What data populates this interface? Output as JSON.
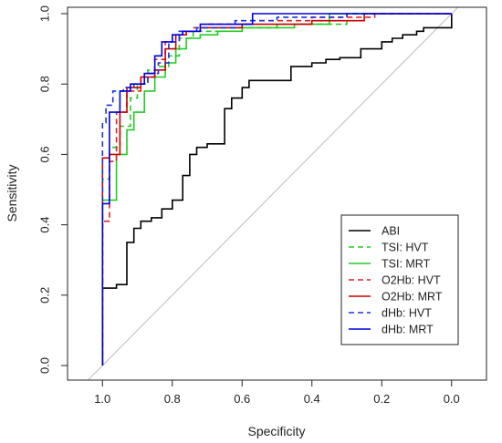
{
  "chart_data": {
    "type": "line",
    "title": "",
    "xlabel": "Specificity",
    "ylabel": "Sensitivity",
    "xlim": [
      1.1,
      -0.1
    ],
    "ylim": [
      0.0,
      1.0
    ],
    "x_reversed": true,
    "x_ticks": [
      1.0,
      0.8,
      0.6,
      0.4,
      0.2,
      0.0
    ],
    "x_tick_labels": [
      "1.0",
      "0.8",
      "0.6",
      "0.4",
      "0.2",
      "0.0"
    ],
    "y_ticks": [
      0.0,
      0.2,
      0.4,
      0.6,
      0.8,
      1.0
    ],
    "y_tick_labels": [
      "0.0",
      "0.2",
      "0.4",
      "0.6",
      "0.8",
      "1.0"
    ],
    "grid": false,
    "legend_position": "bottom-right",
    "reference_line": {
      "color": "#bbbbbb",
      "from": [
        1.0,
        0.0
      ],
      "to": [
        0.0,
        1.0
      ]
    },
    "series": [
      {
        "name": "ABI",
        "color": "#000000",
        "dash": "solid",
        "x": [
          1.0,
          1.0,
          0.96,
          0.96,
          0.93,
          0.93,
          0.91,
          0.91,
          0.89,
          0.89,
          0.86,
          0.86,
          0.83,
          0.83,
          0.8,
          0.8,
          0.77,
          0.77,
          0.75,
          0.75,
          0.73,
          0.73,
          0.7,
          0.7,
          0.65,
          0.65,
          0.63,
          0.63,
          0.6,
          0.6,
          0.58,
          0.58,
          0.53,
          0.53,
          0.46,
          0.46,
          0.4,
          0.4,
          0.36,
          0.36,
          0.32,
          0.32,
          0.26,
          0.26,
          0.2,
          0.2,
          0.17,
          0.17,
          0.14,
          0.14,
          0.1,
          0.1,
          0.08,
          0.08,
          0.0,
          0.0
        ],
        "y": [
          0.0,
          0.22,
          0.22,
          0.23,
          0.23,
          0.35,
          0.35,
          0.39,
          0.39,
          0.41,
          0.41,
          0.42,
          0.42,
          0.445,
          0.445,
          0.47,
          0.47,
          0.54,
          0.54,
          0.6,
          0.6,
          0.62,
          0.62,
          0.63,
          0.63,
          0.73,
          0.73,
          0.76,
          0.76,
          0.79,
          0.79,
          0.81,
          0.81,
          0.81,
          0.81,
          0.85,
          0.85,
          0.86,
          0.86,
          0.87,
          0.87,
          0.875,
          0.875,
          0.9,
          0.9,
          0.92,
          0.92,
          0.93,
          0.93,
          0.94,
          0.94,
          0.95,
          0.95,
          0.96,
          0.96,
          1.0
        ]
      },
      {
        "name": "TSI: HVT",
        "color": "#22cc22",
        "dash": "dashed",
        "x": [
          1.0,
          1.0,
          0.98,
          0.98,
          0.95,
          0.95,
          0.92,
          0.92,
          0.9,
          0.9,
          0.87,
          0.87,
          0.84,
          0.84,
          0.81,
          0.81,
          0.78,
          0.78,
          0.74,
          0.74,
          0.66,
          0.66,
          0.5,
          0.5,
          0.3,
          0.3,
          0.0
        ],
        "y": [
          0.0,
          0.53,
          0.53,
          0.62,
          0.62,
          0.68,
          0.68,
          0.76,
          0.76,
          0.8,
          0.8,
          0.84,
          0.84,
          0.85,
          0.85,
          0.88,
          0.88,
          0.93,
          0.93,
          0.95,
          0.95,
          0.96,
          0.96,
          0.97,
          0.97,
          1.0,
          1.0
        ]
      },
      {
        "name": "TSI: MRT",
        "color": "#22cc22",
        "dash": "solid",
        "x": [
          1.0,
          1.0,
          0.96,
          0.96,
          0.93,
          0.93,
          0.91,
          0.91,
          0.88,
          0.88,
          0.85,
          0.85,
          0.82,
          0.82,
          0.79,
          0.79,
          0.76,
          0.76,
          0.72,
          0.72,
          0.67,
          0.67,
          0.6,
          0.6,
          0.45,
          0.45,
          0.35,
          0.35,
          0.0
        ],
        "y": [
          0.0,
          0.47,
          0.47,
          0.6,
          0.6,
          0.67,
          0.67,
          0.72,
          0.72,
          0.78,
          0.78,
          0.82,
          0.82,
          0.86,
          0.86,
          0.9,
          0.9,
          0.93,
          0.93,
          0.94,
          0.94,
          0.95,
          0.95,
          0.96,
          0.96,
          0.97,
          0.97,
          1.0,
          1.0
        ]
      },
      {
        "name": "O2Hb: HVT",
        "color": "#dd2222",
        "dash": "dashed",
        "x": [
          1.0,
          1.0,
          0.98,
          0.98,
          0.96,
          0.96,
          0.93,
          0.93,
          0.89,
          0.89,
          0.85,
          0.85,
          0.82,
          0.82,
          0.78,
          0.78,
          0.74,
          0.74,
          0.7,
          0.7,
          0.58,
          0.58,
          0.4,
          0.4,
          0.22,
          0.22,
          0.0
        ],
        "y": [
          0.0,
          0.41,
          0.41,
          0.58,
          0.58,
          0.72,
          0.72,
          0.78,
          0.78,
          0.82,
          0.82,
          0.87,
          0.87,
          0.92,
          0.92,
          0.95,
          0.95,
          0.96,
          0.96,
          0.97,
          0.97,
          0.98,
          0.98,
          0.99,
          0.99,
          1.0,
          1.0
        ]
      },
      {
        "name": "O2Hb: MRT",
        "color": "#cc0000",
        "dash": "solid",
        "x": [
          1.0,
          1.0,
          0.98,
          0.98,
          0.95,
          0.95,
          0.93,
          0.93,
          0.89,
          0.89,
          0.85,
          0.85,
          0.82,
          0.82,
          0.79,
          0.79,
          0.76,
          0.76,
          0.72,
          0.72,
          0.6,
          0.6,
          0.4,
          0.4,
          0.25,
          0.25,
          0.0
        ],
        "y": [
          0.0,
          0.59,
          0.59,
          0.6,
          0.6,
          0.72,
          0.72,
          0.79,
          0.79,
          0.82,
          0.82,
          0.84,
          0.84,
          0.9,
          0.9,
          0.94,
          0.94,
          0.95,
          0.95,
          0.96,
          0.96,
          0.97,
          0.97,
          0.98,
          0.98,
          1.0,
          1.0
        ]
      },
      {
        "name": "dHb: HVT",
        "color": "#1a33dd",
        "dash": "dashed",
        "x": [
          1.0,
          1.0,
          0.99,
          0.99,
          0.97,
          0.97,
          0.94,
          0.94,
          0.91,
          0.91,
          0.87,
          0.87,
          0.84,
          0.84,
          0.81,
          0.81,
          0.78,
          0.78,
          0.73,
          0.73,
          0.62,
          0.62,
          0.5,
          0.5,
          0.3,
          0.3,
          0.0
        ],
        "y": [
          0.0,
          0.69,
          0.69,
          0.74,
          0.74,
          0.78,
          0.78,
          0.79,
          0.79,
          0.8,
          0.8,
          0.83,
          0.83,
          0.86,
          0.86,
          0.92,
          0.92,
          0.95,
          0.95,
          0.96,
          0.96,
          0.98,
          0.98,
          0.99,
          0.99,
          1.0,
          1.0
        ]
      },
      {
        "name": "dHb: MRT",
        "color": "#0000dd",
        "dash": "solid",
        "x": [
          1.0,
          1.0,
          0.98,
          0.98,
          0.95,
          0.95,
          0.92,
          0.92,
          0.88,
          0.88,
          0.85,
          0.85,
          0.83,
          0.83,
          0.8,
          0.8,
          0.77,
          0.77,
          0.72,
          0.72,
          0.57,
          0.57,
          0.0
        ],
        "y": [
          0.0,
          0.46,
          0.46,
          0.72,
          0.72,
          0.78,
          0.78,
          0.8,
          0.8,
          0.83,
          0.83,
          0.88,
          0.88,
          0.92,
          0.92,
          0.94,
          0.94,
          0.95,
          0.95,
          0.97,
          0.97,
          1.0,
          1.0
        ]
      }
    ],
    "legend": [
      {
        "label": "ABI",
        "color": "#000000",
        "dash": "solid"
      },
      {
        "label": "TSI: HVT",
        "color": "#22cc22",
        "dash": "dashed"
      },
      {
        "label": "TSI: MRT",
        "color": "#22cc22",
        "dash": "solid"
      },
      {
        "label": "O2Hb: HVT",
        "color": "#dd2222",
        "dash": "dashed"
      },
      {
        "label": "O2Hb: MRT",
        "color": "#cc0000",
        "dash": "solid"
      },
      {
        "label": "dHb: HVT",
        "color": "#1a33dd",
        "dash": "dashed"
      },
      {
        "label": "dHb: MRT",
        "color": "#0000dd",
        "dash": "solid"
      }
    ]
  }
}
